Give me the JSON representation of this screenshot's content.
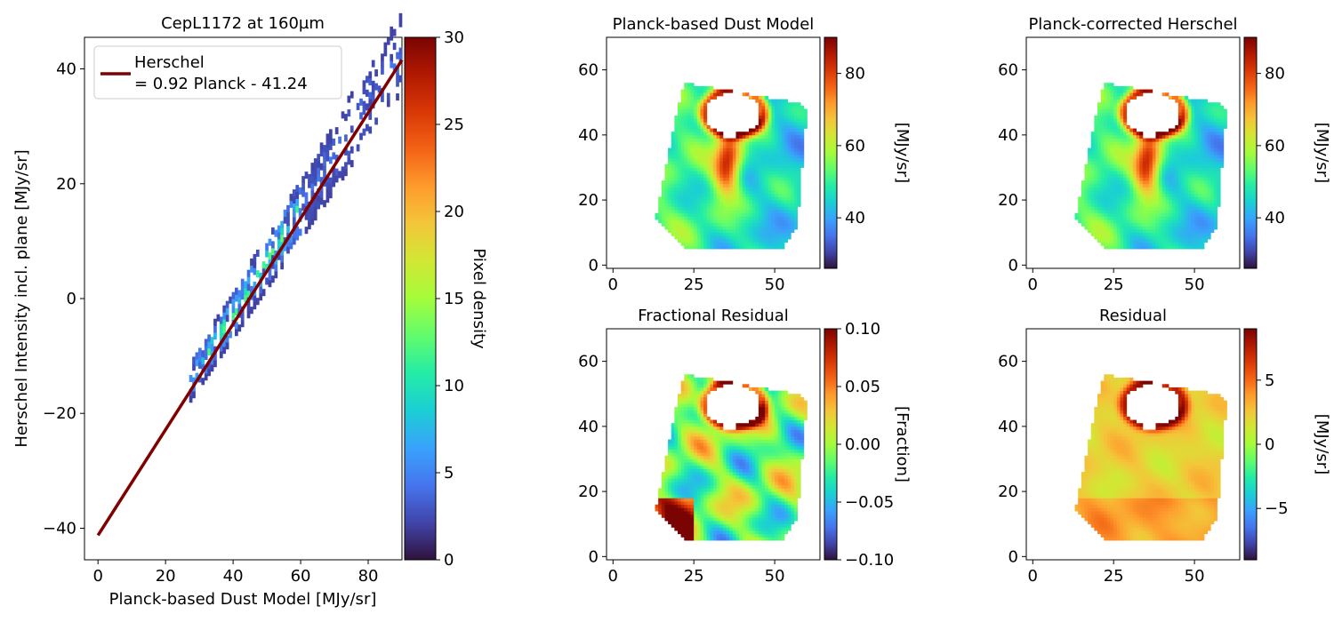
{
  "colormap": [
    "#30123b",
    "#4145ab",
    "#4675ed",
    "#39a2fc",
    "#1bcfd4",
    "#24eca6",
    "#61fc6c",
    "#a4fc3b",
    "#d1e834",
    "#f3c63a",
    "#fe9b2d",
    "#f36315",
    "#d93806",
    "#b11901",
    "#7a0403"
  ],
  "chart_data": [
    {
      "id": "scatter",
      "type": "heatmap",
      "title": "CepL1172 at 160µm",
      "xlabel": "Planck-based Dust Model [MJy/sr]",
      "ylabel": "Herschel Intensity incl. plane [MJy/sr]",
      "xlim": [
        -4,
        90
      ],
      "ylim": [
        -45.5,
        45.5
      ],
      "xticks": [
        0,
        20,
        40,
        60,
        80
      ],
      "yticks": [
        -40,
        -20,
        0,
        20,
        40
      ],
      "fit": {
        "slope": 0.92,
        "intercept": -41.24,
        "color": "#800000",
        "x_range": [
          0,
          90
        ]
      },
      "legend": {
        "position": "top-left",
        "lines": [
          "Herschel",
          "= 0.92 Planck - 41.24"
        ]
      },
      "colorbar": {
        "label": "Pixel density",
        "min": 0,
        "max": 30,
        "ticks": [
          0,
          5,
          10,
          15,
          20,
          25,
          30
        ]
      },
      "density": {
        "x_range": [
          27,
          90
        ],
        "typical": 2,
        "peak": 12
      }
    },
    {
      "id": "model",
      "type": "heatmap",
      "title": "Planck-based Dust Model",
      "xlim": [
        -2,
        64
      ],
      "ylim": [
        -1,
        70
      ],
      "xticks": [
        0,
        25,
        50
      ],
      "yticks": [
        0,
        20,
        40,
        60
      ],
      "colorbar": {
        "label": "[MJy/sr]",
        "min": 26,
        "max": 90,
        "ticks": [
          40,
          60,
          80
        ]
      },
      "field": "model"
    },
    {
      "id": "corrected",
      "type": "heatmap",
      "title": "Planck-corrected Herschel",
      "xlim": [
        -2,
        64
      ],
      "ylim": [
        -1,
        70
      ],
      "xticks": [
        0,
        25,
        50
      ],
      "yticks": [
        0,
        20,
        40,
        60
      ],
      "colorbar": {
        "label": "[MJy/sr]",
        "min": 26,
        "max": 90,
        "ticks": [
          40,
          60,
          80
        ]
      },
      "field": "model"
    },
    {
      "id": "fractional",
      "type": "heatmap",
      "title": "Fractional Residual",
      "xlim": [
        -2,
        64
      ],
      "ylim": [
        -1,
        70
      ],
      "xticks": [
        0,
        25,
        50
      ],
      "yticks": [
        0,
        20,
        40,
        60
      ],
      "colorbar": {
        "label": "[Fraction]",
        "min": -0.1,
        "max": 0.1,
        "ticks": [
          -0.1,
          -0.05,
          0.0,
          0.05,
          0.1
        ],
        "tick_labels": [
          "−0.10",
          "−0.05",
          "0.00",
          "0.05",
          "0.10"
        ]
      },
      "field": "fractional"
    },
    {
      "id": "residual",
      "type": "heatmap",
      "title": "Residual",
      "xlim": [
        -2,
        64
      ],
      "ylim": [
        -1,
        70
      ],
      "xticks": [
        0,
        25,
        50
      ],
      "yticks": [
        0,
        20,
        40,
        60
      ],
      "colorbar": {
        "label": "[MJy/sr]",
        "min": -9,
        "max": 9,
        "ticks": [
          -5,
          0,
          5
        ],
        "tick_labels": [
          "−5",
          "0",
          "5"
        ]
      },
      "field": "residual"
    }
  ]
}
